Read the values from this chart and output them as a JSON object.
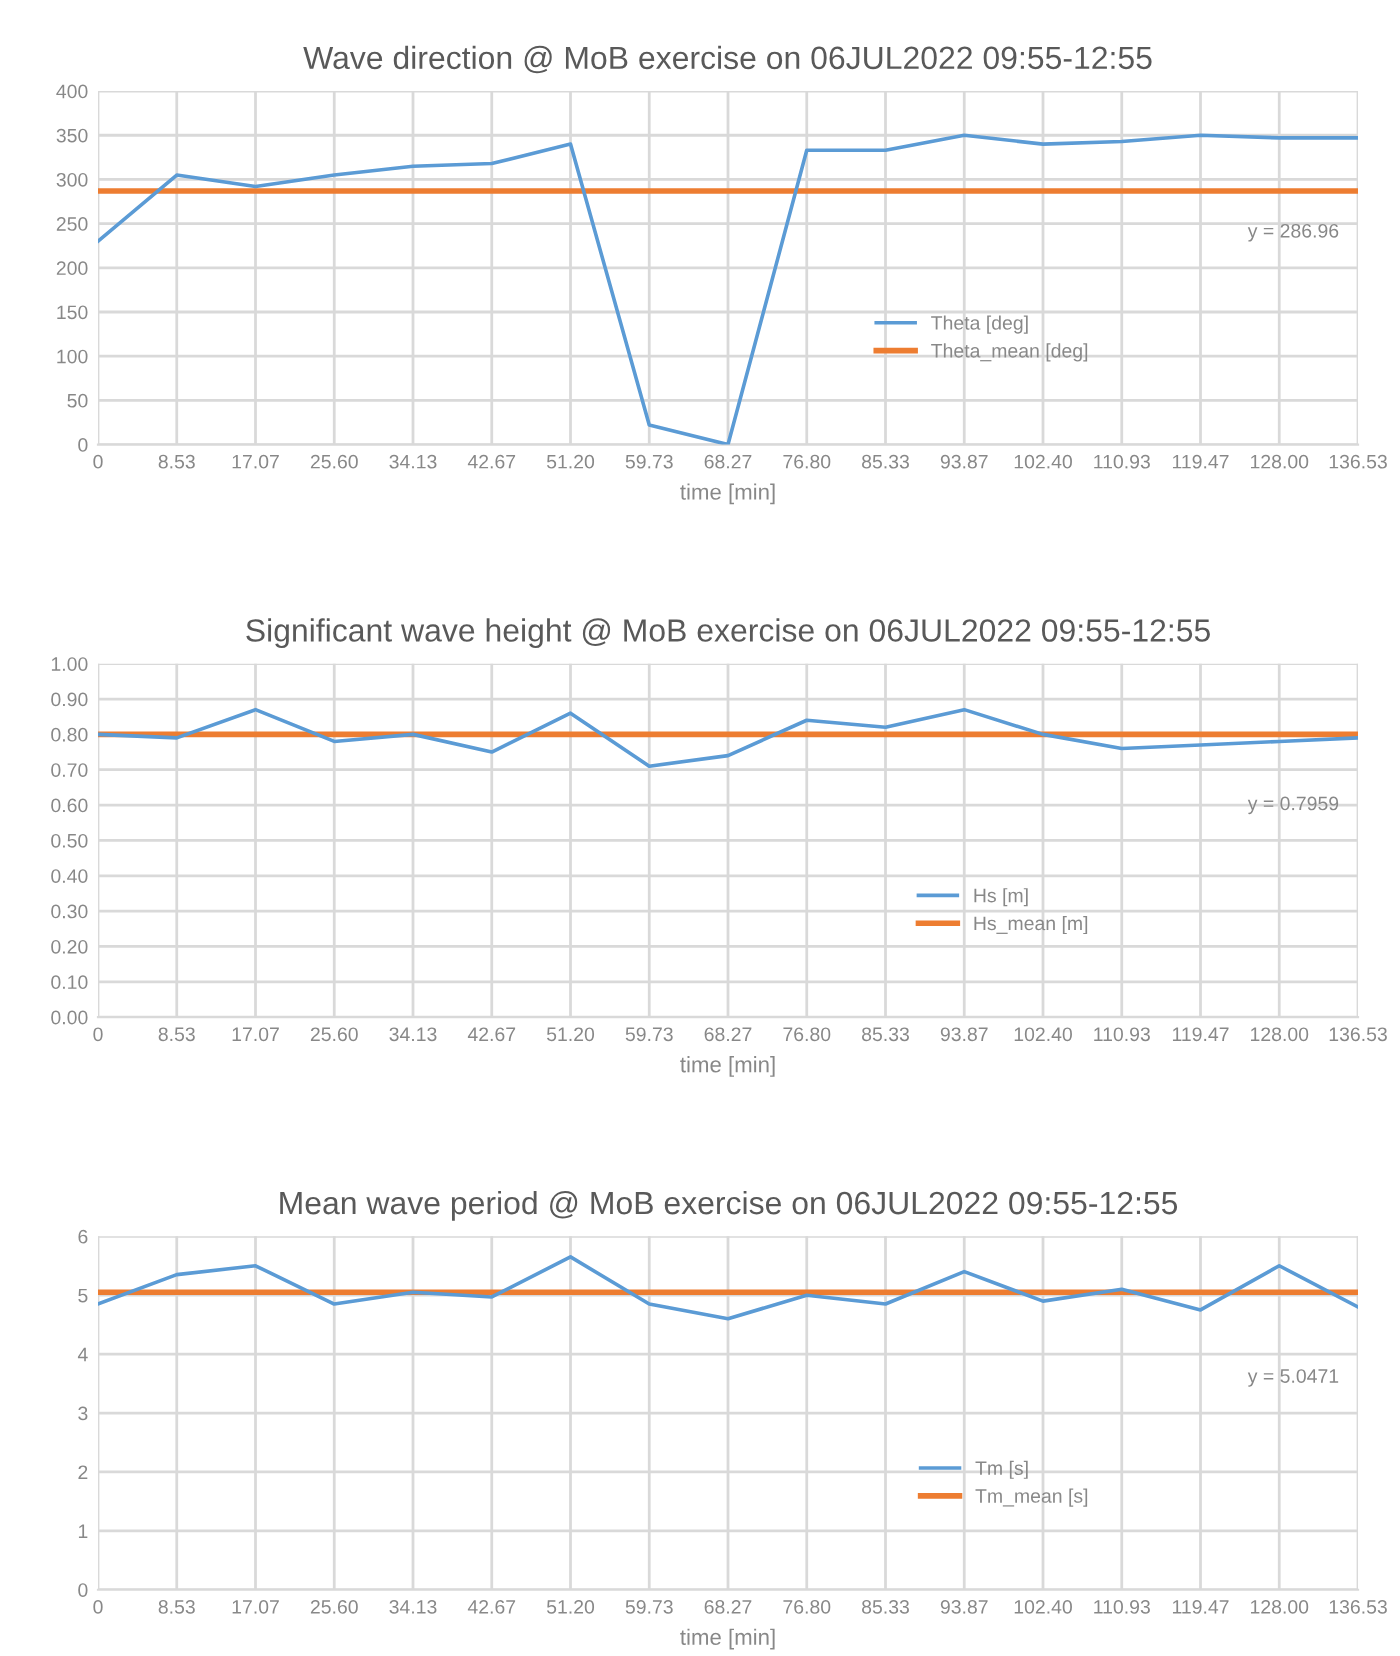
{
  "chart_data": [
    {
      "type": "line",
      "title": "Wave direction @ MoB exercise on 06JUL2022 09:55-12:55",
      "xlabel": "time [min]",
      "categories": [
        "0",
        "8.53",
        "17.07",
        "25.60",
        "34.13",
        "42.67",
        "51.20",
        "59.73",
        "68.27",
        "76.80",
        "85.33",
        "93.87",
        "102.40",
        "110.93",
        "119.47",
        "128.00",
        "136.53"
      ],
      "series": [
        {
          "name": "Theta [deg]",
          "color": "#5b9bd5",
          "values": [
            230,
            305,
            292,
            305,
            315,
            318,
            340,
            22,
            0,
            333,
            333,
            350,
            340,
            343,
            350,
            347,
            347
          ]
        },
        {
          "name": "Theta_mean [deg]",
          "color": "#ed7d31",
          "values": [
            287,
            287,
            287,
            287,
            287,
            287,
            287,
            287,
            287,
            287,
            287,
            287,
            287,
            287,
            287,
            287,
            287
          ]
        }
      ],
      "ylim": [
        0,
        400
      ],
      "yticks": [
        0,
        50,
        100,
        150,
        200,
        250,
        300,
        350,
        400
      ],
      "annotations": [
        "y = 286.96"
      ],
      "grid": true,
      "legend": "right",
      "marker": "none",
      "line_style": "solid"
    },
    {
      "type": "line",
      "title": "Significant wave height @ MoB exercise on 06JUL2022 09:55-12:55",
      "xlabel": "time [min]",
      "categories": [
        "0",
        "8.53",
        "17.07",
        "25.60",
        "34.13",
        "42.67",
        "51.20",
        "59.73",
        "68.27",
        "76.80",
        "85.33",
        "93.87",
        "102.40",
        "110.93",
        "119.47",
        "128.00",
        "136.53"
      ],
      "series": [
        {
          "name": "Hs [m]",
          "color": "#5b9bd5",
          "values": [
            0.8,
            0.79,
            0.87,
            0.78,
            0.8,
            0.75,
            0.86,
            0.71,
            0.74,
            0.84,
            0.82,
            0.87,
            0.8,
            0.76,
            0.77,
            0.78,
            0.79
          ]
        },
        {
          "name": "Hs_mean [m]",
          "color": "#ed7d31",
          "values": [
            0.8,
            0.8,
            0.8,
            0.8,
            0.8,
            0.8,
            0.8,
            0.8,
            0.8,
            0.8,
            0.8,
            0.8,
            0.8,
            0.8,
            0.8,
            0.8,
            0.8
          ]
        }
      ],
      "ylim": [
        0,
        1
      ],
      "yticks": [
        {
          "value": 0,
          "label": "0.00"
        },
        {
          "value": 0.1,
          "label": "0.10"
        },
        {
          "value": 0.2,
          "label": "0.20"
        },
        {
          "value": 0.3,
          "label": "0.30"
        },
        {
          "value": 0.4,
          "label": "0.40"
        },
        {
          "value": 0.5,
          "label": "0.50"
        },
        {
          "value": 0.6,
          "label": "0.60"
        },
        {
          "value": 0.7,
          "label": "0.70"
        },
        {
          "value": 0.8,
          "label": "0.80"
        },
        {
          "value": 0.9,
          "label": "0.90"
        },
        {
          "value": 1,
          "label": "1.00"
        }
      ],
      "annotations": [
        "y = 0.7959"
      ],
      "grid": true,
      "legend": "right",
      "marker": "none",
      "line_style": "solid"
    },
    {
      "type": "line",
      "title": "Mean wave period @ MoB exercise on 06JUL2022 09:55-12:55",
      "xlabel": "time [min]",
      "categories": [
        "0",
        "8.53",
        "17.07",
        "25.60",
        "34.13",
        "42.67",
        "51.20",
        "59.73",
        "68.27",
        "76.80",
        "85.33",
        "93.87",
        "102.40",
        "110.93",
        "119.47",
        "128.00",
        "136.53"
      ],
      "series": [
        {
          "name": "Tm [s]",
          "color": "#5b9bd5",
          "values": [
            4.85,
            5.35,
            5.5,
            4.85,
            5.05,
            4.97,
            5.65,
            4.85,
            4.6,
            5.0,
            4.85,
            5.4,
            4.9,
            5.1,
            4.75,
            5.5,
            4.8
          ]
        },
        {
          "name": "Tm_mean [s]",
          "color": "#ed7d31",
          "values": [
            5.05,
            5.05,
            5.05,
            5.05,
            5.05,
            5.05,
            5.05,
            5.05,
            5.05,
            5.05,
            5.05,
            5.05,
            5.05,
            5.05,
            5.05,
            5.05,
            5.05
          ]
        }
      ],
      "ylim": [
        0,
        6
      ],
      "yticks": [
        0,
        1,
        2,
        3,
        4,
        5,
        6
      ],
      "annotations": [
        "y = 5.0471"
      ],
      "grid": true,
      "legend": "right",
      "marker": "none",
      "line_style": "solid"
    }
  ]
}
